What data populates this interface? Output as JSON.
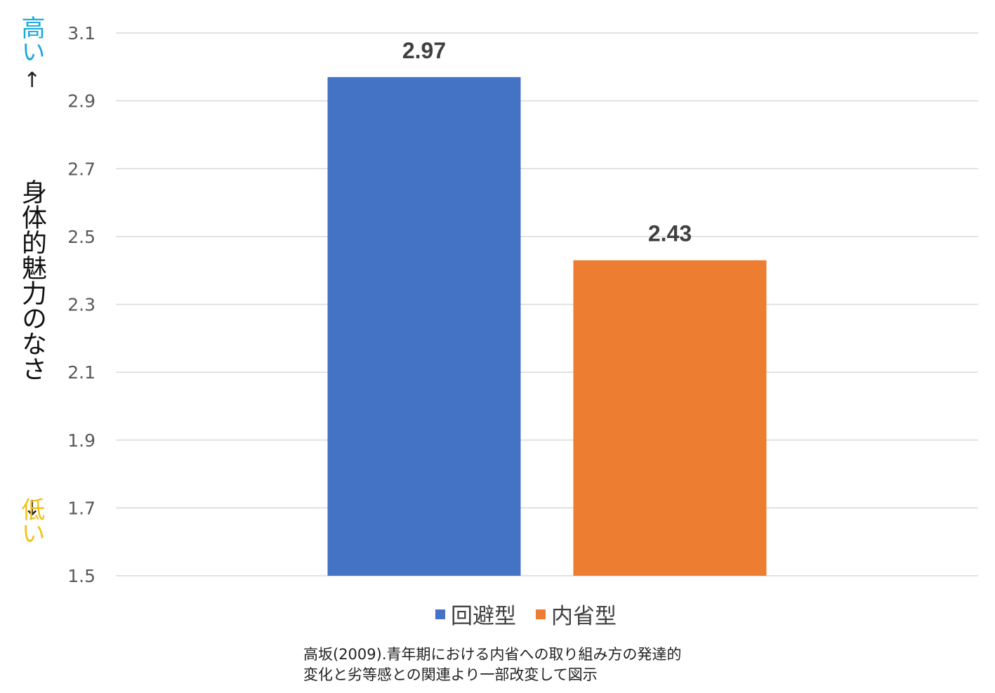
{
  "chart_data": {
    "type": "bar",
    "categories": [
      "回避型",
      "内省型"
    ],
    "values": [
      2.97,
      2.43
    ],
    "colors": [
      "#4472c4",
      "#ed7d31"
    ],
    "data_labels": [
      "2.97",
      "2.43"
    ],
    "ylim": [
      1.5,
      3.1
    ],
    "yticks": [
      1.5,
      1.7,
      1.9,
      2.1,
      2.3,
      2.5,
      2.7,
      2.9,
      3.1
    ],
    "ytick_labels": [
      "1.5",
      "1.7",
      "1.9",
      "2.1",
      "2.3",
      "2.5",
      "2.7",
      "2.9",
      "3.1"
    ],
    "grid": true,
    "legend_position": "bottom",
    "ylabel": "身体的魅力のなさ",
    "ylabel_high": "高い",
    "ylabel_low": "低い",
    "ylabel_high_color": "#1aa7de",
    "ylabel_low_color": "#f4c01c",
    "arrow_up": "↑",
    "arrow_down": "↓"
  },
  "legend": [
    {
      "label": "回避型",
      "color": "#4472c4"
    },
    {
      "label": "内省型",
      "color": "#ed7d31"
    }
  ],
  "source_lines": [
    "高坂(2009).青年期における内省への取り組み方の発達的",
    "変化と劣等感との関連より一部改変して図示"
  ]
}
